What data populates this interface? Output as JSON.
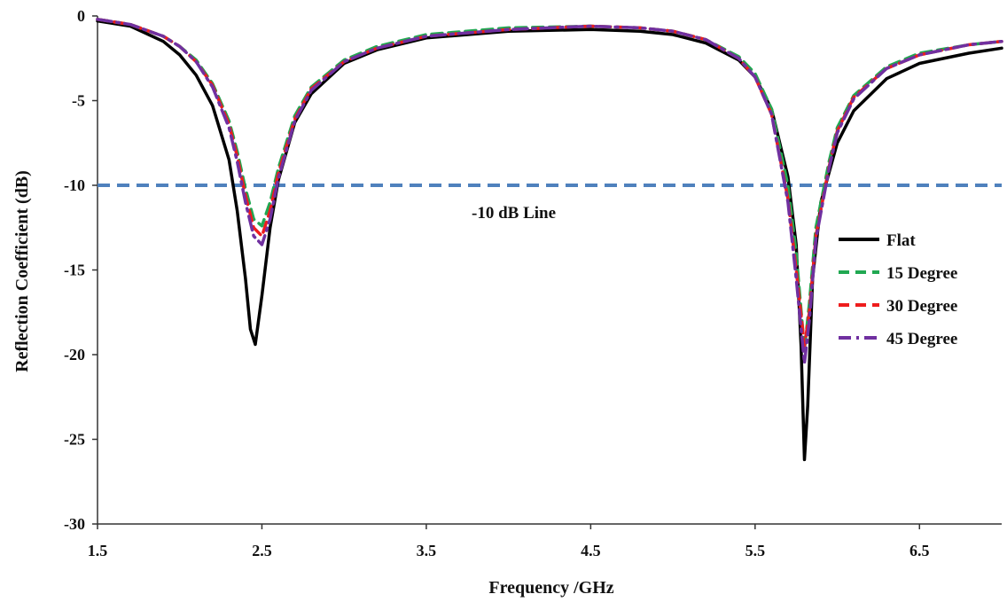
{
  "chart_data": {
    "type": "line",
    "title": "",
    "xlabel": "Frequency /GHz",
    "ylabel": "Reflection Coefficient (dB)",
    "xlim": [
      1.5,
      7.0
    ],
    "ylim": [
      -30,
      0
    ],
    "xticks": [
      "1.5",
      "2.5",
      "3.5",
      "4.5",
      "5.5",
      "6.5"
    ],
    "xtick_values": [
      1.5,
      2.5,
      3.5,
      4.5,
      5.5,
      6.5
    ],
    "yticks": [
      "0",
      "-5",
      "-10",
      "-15",
      "-20",
      "-25",
      "-30"
    ],
    "ytick_values": [
      0,
      -5,
      -10,
      -15,
      -20,
      -25,
      -30
    ],
    "grid": false,
    "legend_position": "right-middle",
    "reference_line": {
      "y": -10,
      "color": "#4f81bd",
      "style": "dashed"
    },
    "annotation": "-10 dB Line",
    "series": [
      {
        "name": "Flat",
        "color": "#000000",
        "style": "solid",
        "x": [
          1.5,
          1.7,
          1.9,
          2.0,
          2.1,
          2.2,
          2.3,
          2.35,
          2.4,
          2.43,
          2.46,
          2.5,
          2.55,
          2.6,
          2.7,
          2.8,
          3.0,
          3.2,
          3.5,
          4.0,
          4.5,
          4.8,
          5.0,
          5.2,
          5.4,
          5.5,
          5.6,
          5.7,
          5.75,
          5.78,
          5.8,
          5.82,
          5.85,
          5.9,
          6.0,
          6.1,
          6.3,
          6.5,
          6.8,
          7.0
        ],
        "y": [
          -0.3,
          -0.6,
          -1.5,
          -2.3,
          -3.5,
          -5.3,
          -8.5,
          -11.5,
          -15.5,
          -18.5,
          -19.4,
          -16.5,
          -12.5,
          -9.7,
          -6.3,
          -4.6,
          -2.8,
          -2.0,
          -1.3,
          -0.9,
          -0.8,
          -0.9,
          -1.1,
          -1.6,
          -2.6,
          -3.6,
          -5.5,
          -9.5,
          -13.5,
          -19.5,
          -26.2,
          -23.0,
          -15.5,
          -11.0,
          -7.5,
          -5.6,
          -3.7,
          -2.8,
          -2.2,
          -1.9
        ]
      },
      {
        "name": "15 Degree",
        "color": "#21a852",
        "style": "dashed",
        "x": [
          1.5,
          1.7,
          1.9,
          2.0,
          2.1,
          2.2,
          2.3,
          2.35,
          2.4,
          2.45,
          2.5,
          2.55,
          2.6,
          2.7,
          2.8,
          3.0,
          3.2,
          3.5,
          4.0,
          4.5,
          4.8,
          5.0,
          5.2,
          5.4,
          5.5,
          5.6,
          5.7,
          5.75,
          5.8,
          5.83,
          5.87,
          5.95,
          6.0,
          6.1,
          6.3,
          6.5,
          6.8,
          7.0
        ],
        "y": [
          -0.2,
          -0.5,
          -1.2,
          -1.8,
          -2.6,
          -4.0,
          -6.2,
          -8.0,
          -10.2,
          -12.0,
          -12.4,
          -11.0,
          -9.0,
          -5.9,
          -4.2,
          -2.6,
          -1.8,
          -1.1,
          -0.7,
          -0.6,
          -0.7,
          -0.9,
          -1.4,
          -2.4,
          -3.4,
          -5.5,
          -10.0,
          -14.0,
          -19.7,
          -17.0,
          -12.5,
          -8.6,
          -6.6,
          -4.7,
          -3.0,
          -2.2,
          -1.7,
          -1.5
        ]
      },
      {
        "name": "30 Degree",
        "color": "#ee1c1c",
        "style": "dashed",
        "x": [
          1.5,
          1.7,
          1.9,
          2.0,
          2.1,
          2.2,
          2.3,
          2.35,
          2.4,
          2.45,
          2.5,
          2.55,
          2.6,
          2.7,
          2.8,
          3.0,
          3.2,
          3.5,
          4.0,
          4.5,
          4.8,
          5.0,
          5.2,
          5.4,
          5.5,
          5.6,
          5.7,
          5.75,
          5.8,
          5.83,
          5.87,
          5.95,
          6.0,
          6.1,
          6.3,
          6.5,
          6.8,
          7.0
        ],
        "y": [
          -0.2,
          -0.5,
          -1.2,
          -1.8,
          -2.7,
          -4.1,
          -6.4,
          -8.3,
          -10.6,
          -12.5,
          -13.0,
          -11.5,
          -9.3,
          -6.1,
          -4.3,
          -2.7,
          -1.9,
          -1.2,
          -0.8,
          -0.6,
          -0.7,
          -0.9,
          -1.4,
          -2.5,
          -3.6,
          -5.8,
          -10.8,
          -15.0,
          -19.5,
          -17.5,
          -13.0,
          -8.9,
          -6.8,
          -4.8,
          -3.1,
          -2.3,
          -1.7,
          -1.5
        ]
      },
      {
        "name": "45 Degree",
        "color": "#7030a0",
        "style": "dashdot",
        "x": [
          1.5,
          1.7,
          1.9,
          2.0,
          2.1,
          2.2,
          2.3,
          2.35,
          2.4,
          2.45,
          2.5,
          2.55,
          2.6,
          2.7,
          2.8,
          3.0,
          3.2,
          3.5,
          4.0,
          4.5,
          4.8,
          5.0,
          5.2,
          5.4,
          5.5,
          5.6,
          5.7,
          5.75,
          5.8,
          5.83,
          5.87,
          5.95,
          6.0,
          6.1,
          6.3,
          6.5,
          6.8,
          7.0
        ],
        "y": [
          -0.2,
          -0.5,
          -1.2,
          -1.8,
          -2.7,
          -4.2,
          -6.6,
          -8.6,
          -11.0,
          -13.0,
          -13.5,
          -12.0,
          -9.6,
          -6.2,
          -4.4,
          -2.7,
          -1.9,
          -1.2,
          -0.8,
          -0.6,
          -0.7,
          -0.9,
          -1.4,
          -2.5,
          -3.6,
          -5.8,
          -11.0,
          -15.5,
          -20.5,
          -18.0,
          -13.2,
          -9.0,
          -6.9,
          -4.9,
          -3.1,
          -2.3,
          -1.7,
          -1.5
        ]
      }
    ]
  }
}
